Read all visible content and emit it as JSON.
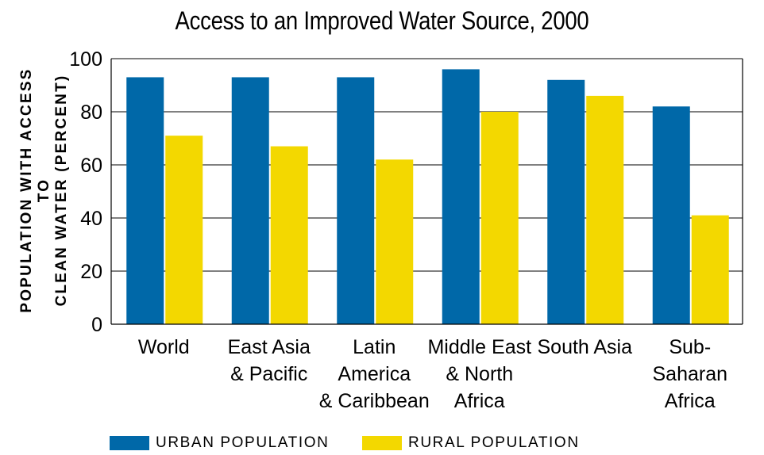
{
  "chart_data": {
    "type": "bar",
    "title": "Access to an Improved Water Source, 2000",
    "xlabel": "",
    "ylabel": "POPULATION WITH ACCESS TO\nCLEAN WATER (PERCENT)",
    "ylim": [
      0,
      100
    ],
    "yticks": [
      0,
      20,
      40,
      60,
      80,
      100
    ],
    "grid": "horizontal",
    "legend_position": "bottom",
    "categories": [
      [
        "World"
      ],
      [
        "East Asia",
        "& Pacific"
      ],
      [
        "Latin",
        "America",
        "& Caribbean"
      ],
      [
        "Middle East",
        "& North",
        "Africa"
      ],
      [
        "South Asia"
      ],
      [
        "Sub-",
        "Saharan",
        "Africa"
      ]
    ],
    "series": [
      {
        "name": "URBAN POPULATION",
        "color": "#0068A8",
        "values": [
          93,
          93,
          93,
          96,
          92,
          82
        ]
      },
      {
        "name": "RURAL POPULATION",
        "color": "#F3D800",
        "values": [
          71,
          67,
          62,
          80,
          86,
          41
        ]
      }
    ]
  }
}
